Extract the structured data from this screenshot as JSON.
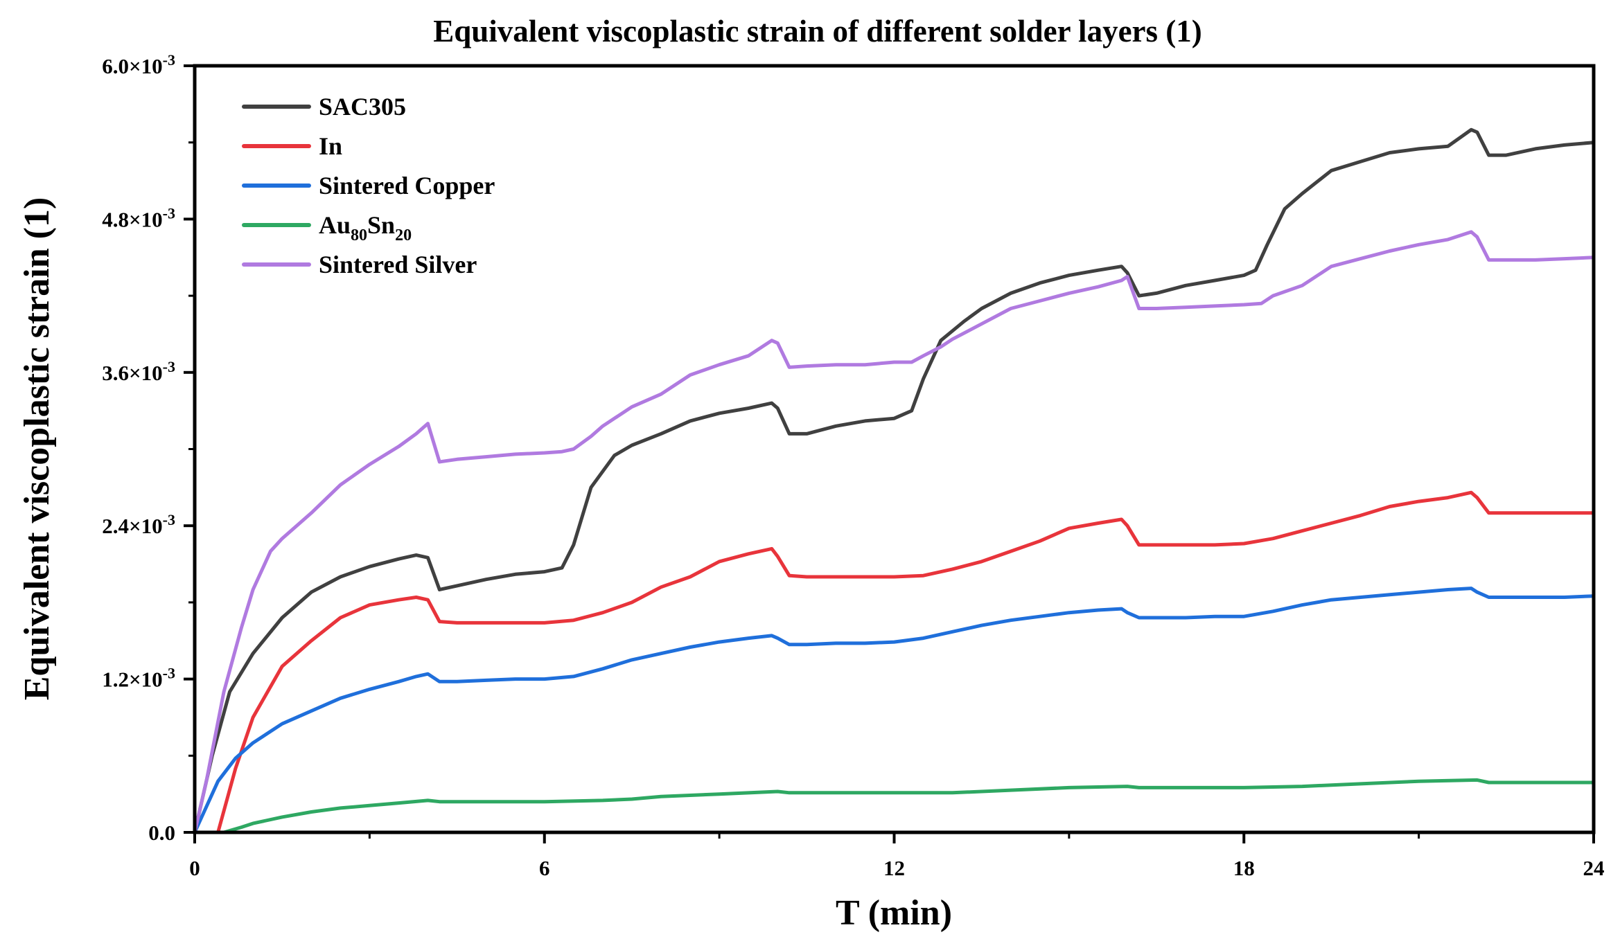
{
  "chart_data": {
    "type": "line",
    "title": "Equivalent viscoplastic strain of different solder layers (1)",
    "xlabel": "T (min)",
    "ylabel": "Equivalent viscoplastic strain (1)",
    "xlim": [
      0,
      24
    ],
    "ylim": [
      0,
      0.006
    ],
    "x_ticks": [
      0,
      6,
      12,
      18,
      24
    ],
    "x_tick_labels": [
      "0",
      "6",
      "12",
      "18",
      "24"
    ],
    "y_ticks": [
      0,
      0.0012,
      0.0024,
      0.0036,
      0.0048,
      0.006
    ],
    "y_tick_mantissas": [
      "0.0",
      "1.2×10",
      "2.4×10",
      "3.6×10",
      "4.8×10",
      "6.0×10"
    ],
    "y_tick_exponent": "-3",
    "grid": false,
    "legend_position": "top-left",
    "series": [
      {
        "name": "SAC305",
        "color": "#404040",
        "x": [
          0,
          0.3,
          0.6,
          1.0,
          1.5,
          2.0,
          2.5,
          3.0,
          3.5,
          3.8,
          4.0,
          4.2,
          4.5,
          5.0,
          5.5,
          6.0,
          6.3,
          6.5,
          6.8,
          7.2,
          7.5,
          8.0,
          8.5,
          9.0,
          9.5,
          9.9,
          10.0,
          10.2,
          10.5,
          11.0,
          11.5,
          12.0,
          12.3,
          12.5,
          12.8,
          13.2,
          13.5,
          14.0,
          14.5,
          15.0,
          15.5,
          15.9,
          16.0,
          16.2,
          16.5,
          17.0,
          17.5,
          18.0,
          18.2,
          18.4,
          18.7,
          19.0,
          19.5,
          20.0,
          20.5,
          21.0,
          21.5,
          21.9,
          22.0,
          22.2,
          22.5,
          23.0,
          23.5,
          24.0
        ],
        "y": [
          0,
          0.0006,
          0.0011,
          0.0014,
          0.00168,
          0.00188,
          0.002,
          0.00208,
          0.00214,
          0.00217,
          0.00215,
          0.0019,
          0.00193,
          0.00198,
          0.00202,
          0.00204,
          0.00207,
          0.00225,
          0.0027,
          0.00295,
          0.00303,
          0.00312,
          0.00322,
          0.00328,
          0.00332,
          0.00336,
          0.00332,
          0.00312,
          0.00312,
          0.00318,
          0.00322,
          0.00324,
          0.0033,
          0.00355,
          0.00385,
          0.004,
          0.0041,
          0.00422,
          0.0043,
          0.00436,
          0.0044,
          0.00443,
          0.00438,
          0.0042,
          0.00422,
          0.00428,
          0.00432,
          0.00436,
          0.0044,
          0.0046,
          0.00488,
          0.005,
          0.00518,
          0.00525,
          0.00532,
          0.00535,
          0.00537,
          0.0055,
          0.00548,
          0.0053,
          0.0053,
          0.00535,
          0.00538,
          0.0054
        ]
      },
      {
        "name": "In",
        "color": "#e8343b",
        "x": [
          0,
          0.4,
          0.7,
          1.0,
          1.5,
          2.0,
          2.5,
          3.0,
          3.5,
          3.8,
          4.0,
          4.2,
          4.5,
          5.0,
          5.5,
          6.0,
          6.5,
          7.0,
          7.5,
          8.0,
          8.5,
          9.0,
          9.5,
          9.9,
          10.0,
          10.2,
          10.5,
          11.0,
          11.5,
          12.0,
          12.5,
          13.0,
          13.5,
          14.0,
          14.5,
          15.0,
          15.5,
          15.9,
          16.0,
          16.2,
          16.5,
          17.0,
          17.5,
          18.0,
          18.5,
          19.0,
          19.5,
          20.0,
          20.5,
          21.0,
          21.5,
          21.9,
          22.0,
          22.2,
          22.5,
          23.0,
          23.5,
          24.0
        ],
        "y": [
          0,
          0,
          0.0005,
          0.0009,
          0.0013,
          0.0015,
          0.00168,
          0.00178,
          0.00182,
          0.00184,
          0.00182,
          0.00165,
          0.00164,
          0.00164,
          0.00164,
          0.00164,
          0.00166,
          0.00172,
          0.0018,
          0.00192,
          0.002,
          0.00212,
          0.00218,
          0.00222,
          0.00216,
          0.00201,
          0.002,
          0.002,
          0.002,
          0.002,
          0.00201,
          0.00206,
          0.00212,
          0.0022,
          0.00228,
          0.00238,
          0.00242,
          0.00245,
          0.0024,
          0.00225,
          0.00225,
          0.00225,
          0.00225,
          0.00226,
          0.0023,
          0.00236,
          0.00242,
          0.00248,
          0.00255,
          0.00259,
          0.00262,
          0.00266,
          0.00262,
          0.0025,
          0.0025,
          0.0025,
          0.0025,
          0.0025
        ]
      },
      {
        "name": "Sintered Copper",
        "color": "#1f6fdb",
        "x": [
          0,
          0.2,
          0.4,
          0.7,
          1.0,
          1.5,
          2.0,
          2.5,
          3.0,
          3.5,
          3.8,
          4.0,
          4.2,
          4.5,
          5.0,
          5.5,
          6.0,
          6.5,
          7.0,
          7.5,
          8.0,
          8.5,
          9.0,
          9.5,
          9.9,
          10.0,
          10.2,
          10.5,
          11.0,
          11.5,
          12.0,
          12.5,
          13.0,
          13.5,
          14.0,
          14.5,
          15.0,
          15.5,
          15.9,
          16.0,
          16.2,
          16.5,
          17.0,
          17.5,
          18.0,
          18.5,
          19.0,
          19.5,
          20.0,
          20.5,
          21.0,
          21.5,
          21.9,
          22.0,
          22.2,
          22.5,
          23.0,
          23.5,
          24.0
        ],
        "y": [
          0,
          0.0002,
          0.0004,
          0.00058,
          0.0007,
          0.00085,
          0.00095,
          0.00105,
          0.00112,
          0.00118,
          0.00122,
          0.00124,
          0.00118,
          0.00118,
          0.00119,
          0.0012,
          0.0012,
          0.00122,
          0.00128,
          0.00135,
          0.0014,
          0.00145,
          0.00149,
          0.00152,
          0.00154,
          0.00152,
          0.00147,
          0.00147,
          0.00148,
          0.00148,
          0.00149,
          0.00152,
          0.00157,
          0.00162,
          0.00166,
          0.00169,
          0.00172,
          0.00174,
          0.00175,
          0.00172,
          0.00168,
          0.00168,
          0.00168,
          0.00169,
          0.00169,
          0.00173,
          0.00178,
          0.00182,
          0.00184,
          0.00186,
          0.00188,
          0.0019,
          0.00191,
          0.00188,
          0.00184,
          0.00184,
          0.00184,
          0.00184,
          0.00185
        ]
      },
      {
        "name": "Au80Sn20",
        "name_parts": [
          "Au",
          "80",
          "Sn",
          "20"
        ],
        "color": "#2ea862",
        "x": [
          0,
          0.5,
          0.8,
          1.0,
          1.5,
          2.0,
          2.5,
          3.0,
          3.5,
          4.0,
          4.2,
          5.0,
          6.0,
          7.0,
          7.5,
          8.0,
          9.0,
          10.0,
          10.2,
          11.0,
          12.0,
          13.0,
          14.0,
          15.0,
          16.0,
          16.2,
          17.0,
          18.0,
          19.0,
          20.0,
          21.0,
          22.0,
          22.2,
          23.0,
          24.0
        ],
        "y": [
          0,
          0,
          4e-05,
          7e-05,
          0.00012,
          0.00016,
          0.00019,
          0.00021,
          0.00023,
          0.00025,
          0.00024,
          0.00024,
          0.00024,
          0.00025,
          0.00026,
          0.00028,
          0.0003,
          0.00032,
          0.00031,
          0.00031,
          0.00031,
          0.00031,
          0.00033,
          0.00035,
          0.00036,
          0.00035,
          0.00035,
          0.00035,
          0.00036,
          0.00038,
          0.0004,
          0.00041,
          0.00039,
          0.00039,
          0.00039
        ]
      },
      {
        "name": "Sintered Silver",
        "color": "#b07ae0",
        "x": [
          0,
          0.2,
          0.5,
          0.8,
          1.0,
          1.3,
          1.5,
          2.0,
          2.5,
          3.0,
          3.5,
          3.8,
          4.0,
          4.2,
          4.5,
          5.0,
          5.5,
          6.0,
          6.3,
          6.5,
          6.8,
          7.0,
          7.5,
          8.0,
          8.5,
          9.0,
          9.5,
          9.9,
          10.0,
          10.2,
          10.5,
          11.0,
          11.5,
          12.0,
          12.3,
          12.5,
          12.8,
          13.0,
          13.5,
          14.0,
          14.5,
          15.0,
          15.5,
          15.9,
          16.0,
          16.2,
          16.5,
          17.0,
          17.5,
          18.0,
          18.3,
          18.5,
          19.0,
          19.5,
          20.0,
          20.5,
          21.0,
          21.5,
          21.9,
          22.0,
          22.2,
          22.5,
          23.0,
          23.5,
          24.0
        ],
        "y": [
          0,
          0.0004,
          0.0011,
          0.0016,
          0.0019,
          0.0022,
          0.0023,
          0.0025,
          0.00272,
          0.00288,
          0.00302,
          0.00312,
          0.0032,
          0.0029,
          0.00292,
          0.00294,
          0.00296,
          0.00297,
          0.00298,
          0.003,
          0.0031,
          0.00318,
          0.00333,
          0.00343,
          0.00358,
          0.00366,
          0.00373,
          0.00385,
          0.00383,
          0.00364,
          0.00365,
          0.00366,
          0.00366,
          0.00368,
          0.00368,
          0.00373,
          0.0038,
          0.00386,
          0.00398,
          0.0041,
          0.00416,
          0.00422,
          0.00427,
          0.00432,
          0.00435,
          0.0041,
          0.0041,
          0.00411,
          0.00412,
          0.00413,
          0.00414,
          0.0042,
          0.00428,
          0.00443,
          0.00449,
          0.00455,
          0.0046,
          0.00464,
          0.0047,
          0.00466,
          0.00448,
          0.00448,
          0.00448,
          0.00449,
          0.0045
        ]
      }
    ]
  }
}
